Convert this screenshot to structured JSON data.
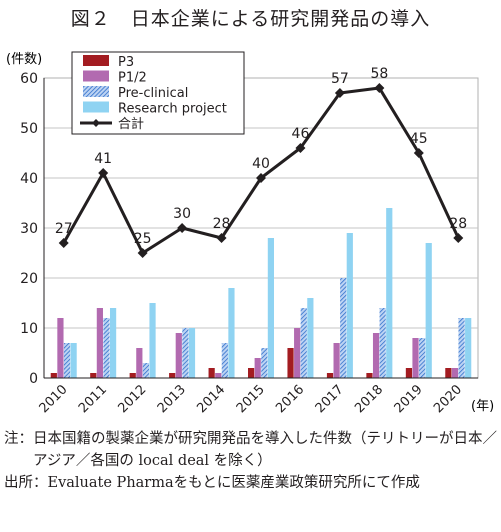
{
  "title": "図２　日本企業による研究開発品の導入",
  "chart_data": {
    "type": "bar",
    "categories": [
      "2010",
      "2011",
      "2012",
      "2013",
      "2014",
      "2015",
      "2016",
      "2017",
      "2018",
      "2019",
      "2020"
    ],
    "series": [
      {
        "name": "P3",
        "kind": "bar",
        "color": "#a31c21",
        "values": [
          1,
          1,
          1,
          1,
          2,
          2,
          6,
          1,
          1,
          2,
          2
        ]
      },
      {
        "name": "P1/2",
        "kind": "bar",
        "color": "#b26ab0",
        "values": [
          12,
          14,
          6,
          9,
          1,
          4,
          10,
          7,
          9,
          8,
          2
        ]
      },
      {
        "name": "Pre-clinical",
        "kind": "bar",
        "color": "#3f7bd1",
        "hatched": true,
        "values": [
          7,
          12,
          3,
          10,
          7,
          6,
          14,
          20,
          14,
          8,
          12
        ]
      },
      {
        "name": "Research project",
        "kind": "bar",
        "color": "#8fd3f2",
        "values": [
          7,
          14,
          15,
          10,
          18,
          28,
          16,
          29,
          34,
          27,
          12
        ]
      },
      {
        "name": "合計",
        "kind": "line",
        "color": "#231f20",
        "values": [
          27,
          41,
          25,
          30,
          28,
          40,
          46,
          57,
          58,
          45,
          28
        ]
      }
    ],
    "y_unit_label": "(件数)",
    "x_unit_label": "(年)",
    "yticks": [
      "0",
      "10",
      "20",
      "30",
      "40",
      "50",
      "60"
    ],
    "ylim": [
      0,
      60
    ],
    "legend_position": "top-left",
    "line_labels": [
      "27",
      "41",
      "25",
      "30",
      "28",
      "40",
      "46",
      "57",
      "58",
      "45",
      "28"
    ]
  },
  "notes": [
    {
      "label": "注：",
      "text": "日本国籍の製薬企業が研究開発品を導入した件数（テリトリーが日本／アジア／各国の local deal を除く）"
    },
    {
      "label": "出所：",
      "text": "Evaluate Pharmaをもとに医薬産業政策研究所にて作成"
    }
  ]
}
